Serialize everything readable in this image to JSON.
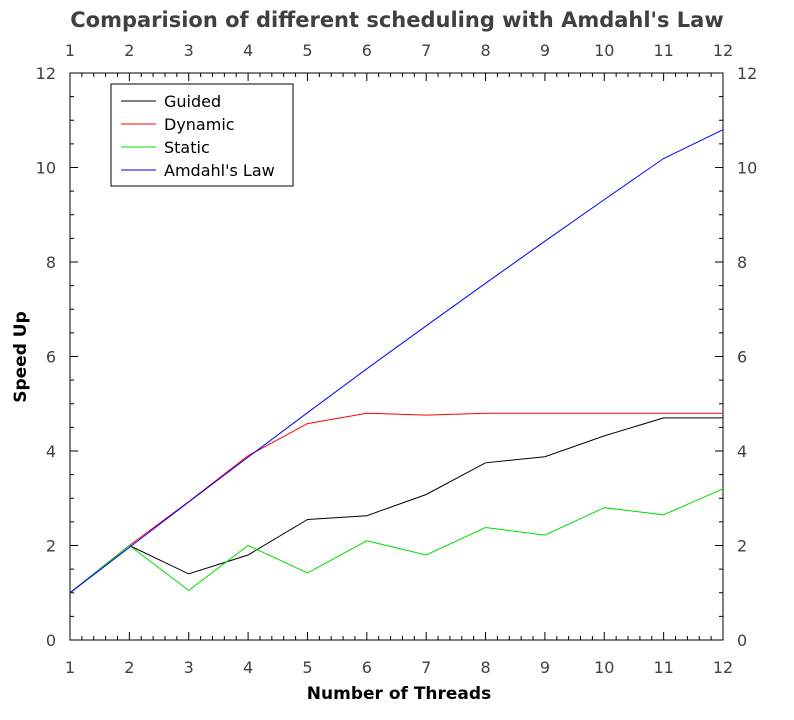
{
  "chart_data": {
    "type": "line",
    "title": "Comparision of different scheduling with Amdahl's Law",
    "xlabel": "Number of Threads",
    "ylabel": "Speed Up",
    "xlim": [
      1,
      12
    ],
    "ylim": [
      0,
      12
    ],
    "x_ticks": [
      1,
      2,
      3,
      4,
      5,
      6,
      7,
      8,
      9,
      10,
      11,
      12
    ],
    "y_ticks": [
      0,
      2,
      4,
      6,
      8,
      10,
      12
    ],
    "x": [
      1,
      2,
      3,
      4,
      5,
      6,
      7,
      8,
      9,
      10,
      11,
      12
    ],
    "series": [
      {
        "name": "Guided",
        "color": "#000000",
        "values": [
          1.0,
          2.0,
          1.4,
          1.8,
          2.55,
          2.63,
          3.08,
          3.75,
          3.88,
          4.32,
          4.7,
          4.7
        ]
      },
      {
        "name": "Dynamic",
        "color": "#ff0000",
        "values": [
          1.0,
          2.0,
          2.93,
          3.9,
          4.58,
          4.8,
          4.76,
          4.8,
          4.8,
          4.8,
          4.8,
          4.8
        ]
      },
      {
        "name": "Static",
        "color": "#00dd00",
        "values": [
          1.0,
          2.0,
          1.05,
          2.0,
          1.42,
          2.1,
          1.8,
          2.38,
          2.22,
          2.8,
          2.65,
          3.2
        ]
      },
      {
        "name": "Amdahl's Law",
        "color": "#0000ff",
        "values": [
          1.0,
          1.96,
          2.92,
          3.87,
          4.81,
          5.74,
          6.65,
          7.55,
          8.44,
          9.32,
          10.19,
          10.8
        ]
      }
    ],
    "grid": false,
    "legend_position": "top-left",
    "mirrored_axes": true
  }
}
